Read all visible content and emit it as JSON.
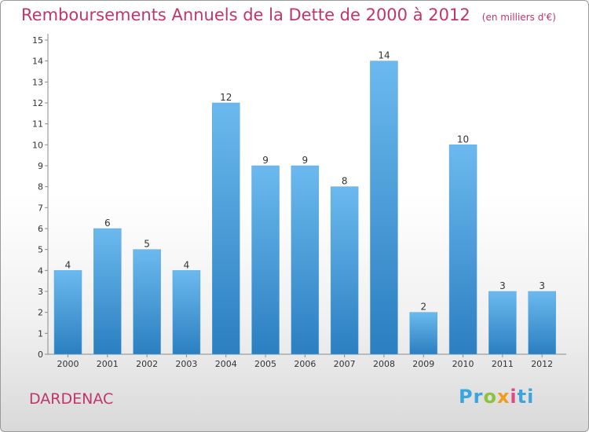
{
  "title": "Remboursements Annuels de la Dette de 2000 à 2012",
  "unit": "(en milliers d'€)",
  "commune": "DARDENAC",
  "logo": {
    "p1": "Pr",
    "p2": "o",
    "p3": "x",
    "p4": "i",
    "p5": "ti"
  },
  "colors": {
    "bar_light": "#6bb9ee",
    "bar_dark": "#2f84c4",
    "title": "#c0356b"
  },
  "chart_data": {
    "type": "bar",
    "categories": [
      "2000",
      "2001",
      "2002",
      "2003",
      "2004",
      "2005",
      "2006",
      "2007",
      "2008",
      "2009",
      "2010",
      "2011",
      "2012"
    ],
    "values": [
      4,
      6,
      5,
      4,
      12,
      9,
      9,
      8,
      14,
      2,
      10,
      3,
      3
    ],
    "ylim": [
      0,
      15
    ],
    "yticks": [
      0,
      1,
      2,
      3,
      4,
      5,
      6,
      7,
      8,
      9,
      10,
      11,
      12,
      13,
      14,
      15
    ],
    "grid": false,
    "title": "Remboursements Annuels de la Dette de 2000 à 2012",
    "xlabel": "",
    "ylabel": ""
  }
}
